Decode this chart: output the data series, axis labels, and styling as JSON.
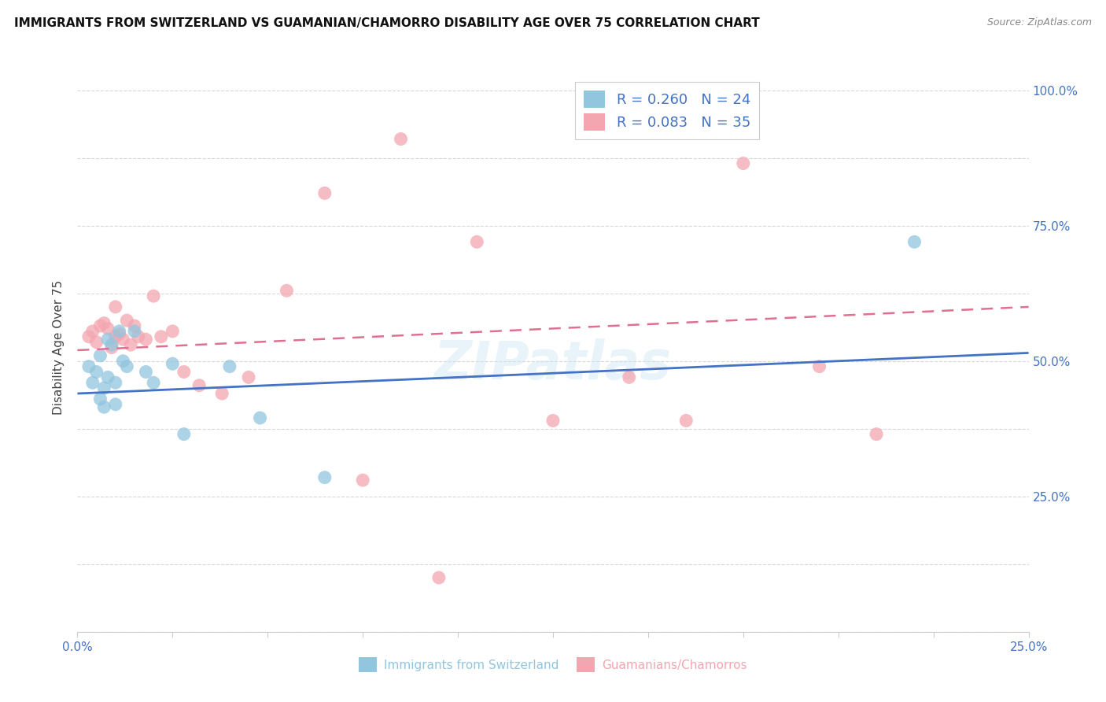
{
  "title": "IMMIGRANTS FROM SWITZERLAND VS GUAMANIAN/CHAMORRO DISABILITY AGE OVER 75 CORRELATION CHART",
  "source": "Source: ZipAtlas.com",
  "ylabel": "Disability Age Over 75",
  "xlim": [
    0.0,
    0.25
  ],
  "ylim": [
    0.0,
    1.05
  ],
  "right_ytick_labels": [
    "25.0%",
    "50.0%",
    "75.0%",
    "100.0%"
  ],
  "right_ytick_positions": [
    0.25,
    0.5,
    0.75,
    1.0
  ],
  "left_ytick_positions": [
    0.0,
    0.125,
    0.25,
    0.375,
    0.5,
    0.625,
    0.75,
    0.875,
    1.0
  ],
  "xtick_positions": [
    0.0,
    0.025,
    0.05,
    0.075,
    0.1,
    0.125,
    0.15,
    0.175,
    0.2,
    0.225,
    0.25
  ],
  "xtick_labels": [
    "0.0%",
    "",
    "",
    "",
    "",
    "",
    "",
    "",
    "",
    "",
    "25.0%"
  ],
  "blue_color": "#92c5de",
  "pink_color": "#f4a6b0",
  "blue_line_color": "#4472c4",
  "pink_line_color": "#e07090",
  "tick_label_color": "#4472c4",
  "watermark": "ZIPatlas",
  "blue_scatter_x": [
    0.003,
    0.004,
    0.005,
    0.006,
    0.006,
    0.007,
    0.007,
    0.008,
    0.008,
    0.009,
    0.01,
    0.01,
    0.011,
    0.012,
    0.013,
    0.015,
    0.018,
    0.02,
    0.025,
    0.028,
    0.04,
    0.048,
    0.065,
    0.22
  ],
  "blue_scatter_y": [
    0.49,
    0.46,
    0.48,
    0.51,
    0.43,
    0.45,
    0.415,
    0.54,
    0.47,
    0.53,
    0.46,
    0.42,
    0.555,
    0.5,
    0.49,
    0.555,
    0.48,
    0.46,
    0.495,
    0.365,
    0.49,
    0.395,
    0.285,
    0.72
  ],
  "pink_scatter_x": [
    0.003,
    0.004,
    0.005,
    0.006,
    0.007,
    0.008,
    0.009,
    0.01,
    0.01,
    0.011,
    0.012,
    0.013,
    0.014,
    0.015,
    0.016,
    0.018,
    0.02,
    0.022,
    0.025,
    0.028,
    0.032,
    0.038,
    0.045,
    0.055,
    0.065,
    0.075,
    0.085,
    0.095,
    0.105,
    0.125,
    0.145,
    0.16,
    0.175,
    0.195,
    0.21
  ],
  "pink_scatter_y": [
    0.545,
    0.555,
    0.535,
    0.565,
    0.57,
    0.56,
    0.525,
    0.545,
    0.6,
    0.55,
    0.54,
    0.575,
    0.53,
    0.565,
    0.545,
    0.54,
    0.62,
    0.545,
    0.555,
    0.48,
    0.455,
    0.44,
    0.47,
    0.63,
    0.81,
    0.28,
    0.91,
    0.1,
    0.72,
    0.39,
    0.47,
    0.39,
    0.865,
    0.49,
    0.365
  ],
  "blue_line_x": [
    0.0,
    0.25
  ],
  "blue_line_y": [
    0.44,
    0.515
  ],
  "pink_line_x": [
    0.0,
    0.25
  ],
  "pink_line_y": [
    0.52,
    0.6
  ],
  "grid_color": "#d8d8d8",
  "spine_color": "#cccccc"
}
